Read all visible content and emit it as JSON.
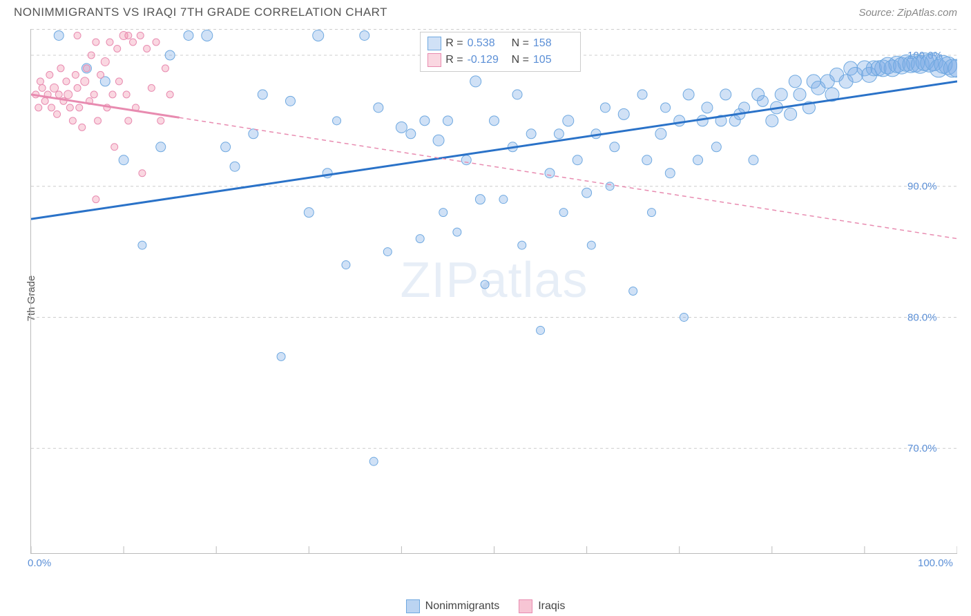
{
  "title": "NONIMMIGRANTS VS IRAQI 7TH GRADE CORRELATION CHART",
  "source": "Source: ZipAtlas.com",
  "watermark": "ZIPatlas",
  "ylabel": "7th Grade",
  "chart": {
    "type": "scatter",
    "xlim": [
      0,
      100
    ],
    "ylim": [
      62,
      102
    ],
    "xtick_labels": {
      "0": "0.0%",
      "100": "100.0%"
    },
    "xtick_positions": [
      0,
      10,
      20,
      30,
      40,
      50,
      60,
      70,
      80,
      90,
      100
    ],
    "ytick_positions": [
      70,
      80,
      90,
      100
    ],
    "ytick_labels": {
      "70": "70.0%",
      "80": "80.0%",
      "90": "90.0%",
      "100": "100.0%"
    },
    "grid_color": "#cccccc",
    "background_color": "#ffffff",
    "series": [
      {
        "name": "Nonimmigrants",
        "fill": "rgba(120,170,230,0.35)",
        "stroke": "#6ea8e0",
        "line_color": "#2a72c8",
        "line_dash": "none",
        "r_stat": "0.538",
        "n_stat": "158",
        "trend": {
          "x1": 0,
          "y1": 87.5,
          "x2": 100,
          "y2": 98.0
        },
        "trend_solid_end": 100,
        "points": [
          [
            3,
            101.5,
            7
          ],
          [
            6,
            99,
            7
          ],
          [
            8,
            98,
            7
          ],
          [
            10,
            92,
            7
          ],
          [
            12,
            85.5,
            6
          ],
          [
            14,
            93,
            7
          ],
          [
            15,
            100,
            7
          ],
          [
            17,
            101.5,
            7
          ],
          [
            19,
            101.5,
            8
          ],
          [
            21,
            93,
            7
          ],
          [
            22,
            91.5,
            7
          ],
          [
            24,
            94,
            7
          ],
          [
            25,
            97,
            7
          ],
          [
            27,
            77,
            6
          ],
          [
            28,
            96.5,
            7
          ],
          [
            30,
            88,
            7
          ],
          [
            31,
            101.5,
            8
          ],
          [
            32,
            91,
            7
          ],
          [
            33,
            95,
            6
          ],
          [
            34,
            84,
            6
          ],
          [
            36,
            101.5,
            7
          ],
          [
            37,
            69,
            6
          ],
          [
            37.5,
            96,
            7
          ],
          [
            38.5,
            85,
            6
          ],
          [
            40,
            94.5,
            8
          ],
          [
            41,
            94,
            7
          ],
          [
            42,
            86,
            6
          ],
          [
            42.5,
            95,
            7
          ],
          [
            44,
            93.5,
            8
          ],
          [
            44.5,
            88,
            6
          ],
          [
            45,
            95,
            7
          ],
          [
            46,
            86.5,
            6
          ],
          [
            47,
            92,
            7
          ],
          [
            48,
            98,
            8
          ],
          [
            48.5,
            89,
            7
          ],
          [
            49,
            82.5,
            6
          ],
          [
            50,
            95,
            7
          ],
          [
            51,
            89,
            6
          ],
          [
            52,
            93,
            7
          ],
          [
            52.5,
            97,
            7
          ],
          [
            53,
            85.5,
            6
          ],
          [
            54,
            94,
            7
          ],
          [
            55,
            79,
            6
          ],
          [
            56,
            91,
            7
          ],
          [
            57,
            94,
            7
          ],
          [
            57.5,
            88,
            6
          ],
          [
            58,
            95,
            8
          ],
          [
            59,
            92,
            7
          ],
          [
            60,
            89.5,
            7
          ],
          [
            60.5,
            85.5,
            6
          ],
          [
            61,
            94,
            7
          ],
          [
            62,
            96,
            7
          ],
          [
            62.5,
            90,
            6
          ],
          [
            63,
            93,
            7
          ],
          [
            64,
            95.5,
            8
          ],
          [
            65,
            82,
            6
          ],
          [
            66,
            97,
            7
          ],
          [
            66.5,
            92,
            7
          ],
          [
            67,
            88,
            6
          ],
          [
            68,
            94,
            8
          ],
          [
            68.5,
            96,
            7
          ],
          [
            69,
            91,
            7
          ],
          [
            70,
            95,
            8
          ],
          [
            70.5,
            80,
            6
          ],
          [
            71,
            97,
            8
          ],
          [
            72,
            92,
            7
          ],
          [
            72.5,
            95,
            8
          ],
          [
            73,
            96,
            8
          ],
          [
            74,
            93,
            7
          ],
          [
            74.5,
            95,
            8
          ],
          [
            75,
            97,
            8
          ],
          [
            76,
            95,
            8
          ],
          [
            76.5,
            95.5,
            8
          ],
          [
            77,
            96,
            8
          ],
          [
            78,
            92,
            7
          ],
          [
            78.5,
            97,
            9
          ],
          [
            79,
            96.5,
            8
          ],
          [
            80,
            95,
            9
          ],
          [
            80.5,
            96,
            9
          ],
          [
            81,
            97,
            9
          ],
          [
            82,
            95.5,
            9
          ],
          [
            82.5,
            98,
            9
          ],
          [
            83,
            97,
            9
          ],
          [
            84,
            96,
            9
          ],
          [
            84.5,
            98,
            10
          ],
          [
            85,
            97.5,
            10
          ],
          [
            86,
            98,
            10
          ],
          [
            86.5,
            97,
            10
          ],
          [
            87,
            98.5,
            10
          ],
          [
            88,
            98,
            10
          ],
          [
            88.5,
            99,
            10
          ],
          [
            89,
            98.5,
            11
          ],
          [
            90,
            99,
            11
          ],
          [
            90.5,
            98.5,
            11
          ],
          [
            91,
            99,
            11
          ],
          [
            91.5,
            99,
            11
          ],
          [
            92,
            99,
            12
          ],
          [
            92.5,
            99.2,
            12
          ],
          [
            93,
            99,
            12
          ],
          [
            93.5,
            99.3,
            12
          ],
          [
            94,
            99.2,
            12
          ],
          [
            94.5,
            99.4,
            12
          ],
          [
            95,
            99.3,
            12
          ],
          [
            95.5,
            99.4,
            13
          ],
          [
            96,
            99.3,
            13
          ],
          [
            96.5,
            99.5,
            13
          ],
          [
            97,
            99.4,
            13
          ],
          [
            97.5,
            99.5,
            13
          ],
          [
            98,
            99,
            13
          ],
          [
            98.5,
            99.3,
            13
          ],
          [
            99,
            99.2,
            13
          ],
          [
            99.5,
            99,
            13
          ],
          [
            100,
            99,
            13
          ]
        ]
      },
      {
        "name": "Iraqis",
        "fill": "rgba(240,140,170,0.35)",
        "stroke": "#e88bb0",
        "line_color": "#e88bb0",
        "line_dash": "6,5",
        "r_stat": "-0.129",
        "n_stat": "105",
        "trend": {
          "x1": 0,
          "y1": 97.0,
          "x2": 100,
          "y2": 86.0
        },
        "trend_solid_end": 16,
        "points": [
          [
            0.5,
            97,
            5
          ],
          [
            0.8,
            96,
            5
          ],
          [
            1,
            98,
            5
          ],
          [
            1.2,
            97.5,
            5
          ],
          [
            1.5,
            96.5,
            5
          ],
          [
            1.8,
            97,
            5
          ],
          [
            2,
            98.5,
            5
          ],
          [
            2.2,
            96,
            5
          ],
          [
            2.5,
            97.5,
            6
          ],
          [
            2.8,
            95.5,
            5
          ],
          [
            3,
            97,
            5
          ],
          [
            3.2,
            99,
            5
          ],
          [
            3.5,
            96.5,
            5
          ],
          [
            3.8,
            98,
            5
          ],
          [
            4,
            97,
            6
          ],
          [
            4.2,
            96,
            5
          ],
          [
            4.5,
            95,
            5
          ],
          [
            4.8,
            98.5,
            5
          ],
          [
            5,
            97.5,
            5
          ],
          [
            5.2,
            96,
            5
          ],
          [
            5.5,
            94.5,
            5
          ],
          [
            5.8,
            98,
            6
          ],
          [
            6,
            99,
            5
          ],
          [
            6.3,
            96.5,
            5
          ],
          [
            6.5,
            100,
            5
          ],
          [
            6.8,
            97,
            5
          ],
          [
            7,
            101,
            5
          ],
          [
            7.2,
            95,
            5
          ],
          [
            7.5,
            98.5,
            5
          ],
          [
            8,
            99.5,
            6
          ],
          [
            8.2,
            96,
            5
          ],
          [
            8.5,
            101,
            5
          ],
          [
            8.8,
            97,
            5
          ],
          [
            9,
            93,
            5
          ],
          [
            9.3,
            100.5,
            5
          ],
          [
            9.5,
            98,
            5
          ],
          [
            10,
            101.5,
            6
          ],
          [
            10.3,
            97,
            5
          ],
          [
            10.5,
            95,
            5
          ],
          [
            11,
            101,
            5
          ],
          [
            11.3,
            96,
            5
          ],
          [
            11.8,
            101.5,
            5
          ],
          [
            12,
            91,
            5
          ],
          [
            12.5,
            100.5,
            5
          ],
          [
            13,
            97.5,
            5
          ],
          [
            13.5,
            101,
            5
          ],
          [
            14,
            95,
            5
          ],
          [
            14.5,
            99,
            5
          ],
          [
            15,
            97,
            5
          ],
          [
            7,
            89,
            5
          ],
          [
            5,
            101.5,
            5
          ],
          [
            10.5,
            101.5,
            5
          ]
        ]
      }
    ]
  },
  "bottom_legend": [
    {
      "label": "Nonimmigrants",
      "fill": "rgba(120,170,230,0.5)",
      "stroke": "#6ea8e0"
    },
    {
      "label": "Iraqis",
      "fill": "rgba(240,140,170,0.5)",
      "stroke": "#e88bb0"
    }
  ]
}
